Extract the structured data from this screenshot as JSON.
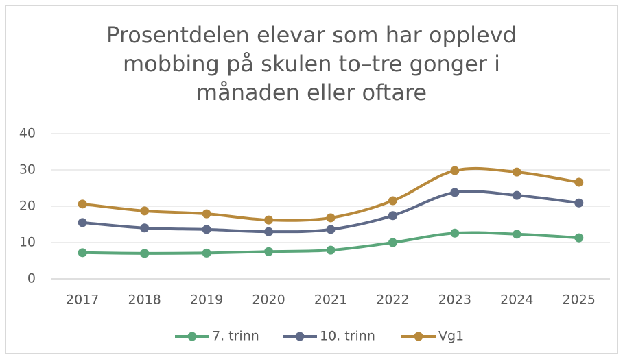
{
  "chart_data": {
    "type": "line",
    "title": "Prosentdelen elevar som har opplevd mobbing på skulen to–tre gonger i månaden eller oftare",
    "categories": [
      "2017",
      "2018",
      "2019",
      "2020",
      "2021",
      "2022",
      "2023",
      "2024",
      "2025"
    ],
    "series": [
      {
        "name": "7. trinn",
        "color": "#5aa67a",
        "values": [
          7.2,
          7.0,
          7.1,
          7.5,
          7.9,
          10.0,
          12.6,
          12.3,
          11.3
        ]
      },
      {
        "name": "10. trinn",
        "color": "#5f6a88",
        "values": [
          15.5,
          14.0,
          13.6,
          13.0,
          13.6,
          17.4,
          23.8,
          23.0,
          20.9
        ]
      },
      {
        "name": "Vg1",
        "color": "#b8893b",
        "values": [
          20.6,
          18.7,
          17.9,
          16.2,
          16.8,
          21.5,
          29.8,
          29.4,
          26.6
        ]
      }
    ],
    "ylim": [
      0,
      40
    ],
    "yticks": [
      0,
      10,
      20,
      30,
      40
    ],
    "grid": true,
    "legend": "bottom"
  }
}
